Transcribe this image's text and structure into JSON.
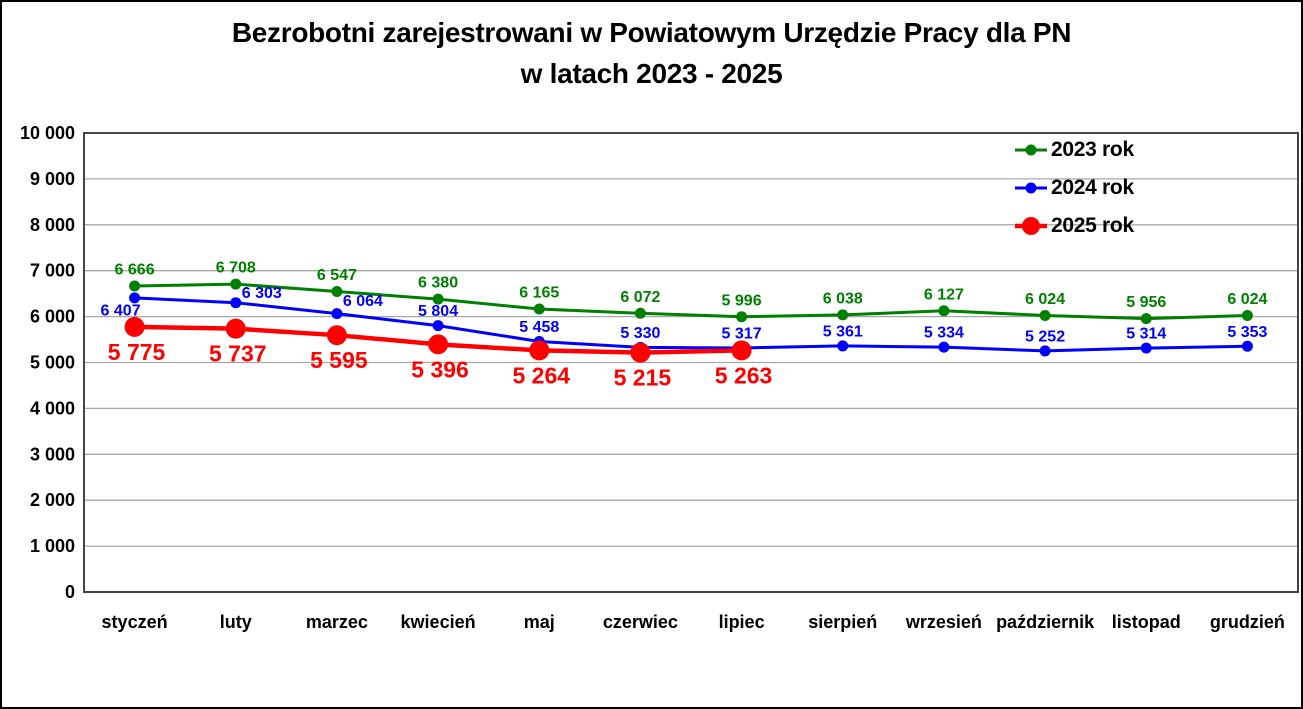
{
  "title": {
    "line1": "Bezrobotni zarejestrowani w Powiatowym Urzędzie Pracy dla PN",
    "line2": "w latach 2023 - 2025"
  },
  "colors": {
    "background": "#ffffff",
    "outer_border": "#000000",
    "plot_border": "#444444",
    "grid": "#a8a8a8",
    "axis_text": "#000000",
    "series_2023": "#008000",
    "series_2024": "#0000ff",
    "series_2025": "#ff0000"
  },
  "chart_data": {
    "type": "line",
    "title": "Bezrobotni zarejestrowani w Powiatowym Urzędzie Pracy dla PN w latach 2023 - 2025",
    "xlabel": "",
    "ylabel": "",
    "ylim": [
      0,
      10000
    ],
    "y_tick_step": 1000,
    "y_ticks": [
      "0",
      "1 000",
      "2 000",
      "3 000",
      "4 000",
      "5 000",
      "6 000",
      "7 000",
      "8 000",
      "9 000",
      "10 000"
    ],
    "grid": "horizontal",
    "legend_position": "top-right-inside",
    "categories": [
      "styczeń",
      "luty",
      "marzec",
      "kwiecień",
      "maj",
      "czerwiec",
      "lipiec",
      "sierpień",
      "wrzesień",
      "październik",
      "listopad",
      "grudzień"
    ],
    "series": [
      {
        "name": "2023 rok",
        "color": "#008000",
        "marker": "small",
        "values": [
          6666,
          6708,
          6547,
          6380,
          6165,
          6072,
          5996,
          6038,
          6127,
          6024,
          5956,
          6024
        ],
        "labels": [
          "6 666",
          "6 708",
          "6 547",
          "6 380",
          "6 165",
          "6 072",
          "5 996",
          "6 038",
          "6 127",
          "6 024",
          "5 956",
          "6 024"
        ]
      },
      {
        "name": "2024 rok",
        "color": "#0000ff",
        "marker": "small",
        "values": [
          6407,
          6303,
          6064,
          5804,
          5458,
          5330,
          5317,
          5361,
          5334,
          5252,
          5314,
          5353
        ],
        "labels": [
          "6 407",
          "6 303",
          "6 064",
          "5 804",
          "5 458",
          "5 330",
          "5 317",
          "5 361",
          "5 334",
          "5 252",
          "5 314",
          "5 353"
        ]
      },
      {
        "name": "2025 rok",
        "color": "#ff0000",
        "marker": "large",
        "values": [
          5775,
          5737,
          5595,
          5396,
          5264,
          5215,
          5263
        ],
        "labels": [
          "5 775",
          "5 737",
          "5 595",
          "5 396",
          "5 264",
          "5 215",
          "5 263"
        ]
      }
    ]
  }
}
